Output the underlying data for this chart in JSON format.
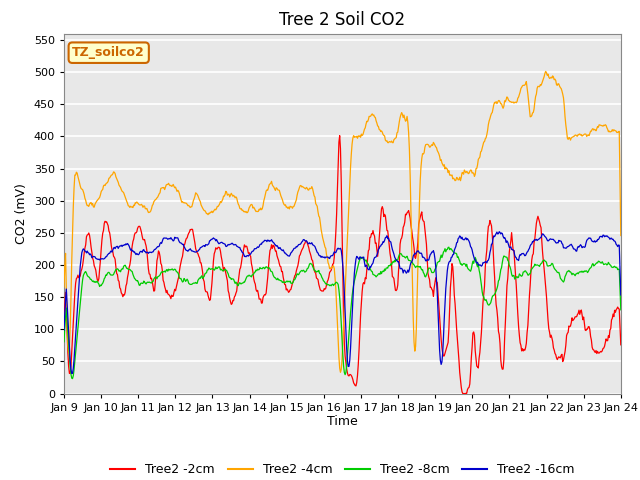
{
  "title": "Tree 2 Soil CO2",
  "xlabel": "Time",
  "ylabel": "CO2 (mV)",
  "ylim": [
    0,
    560
  ],
  "yticks": [
    0,
    50,
    100,
    150,
    200,
    250,
    300,
    350,
    400,
    450,
    500,
    550
  ],
  "x_tick_labels": [
    "Jan 9",
    "Jan 10",
    "Jan 11",
    "Jan 12",
    "Jan 13",
    "Jan 14",
    "Jan 15",
    "Jan 16",
    "Jan 17",
    "Jan 18",
    "Jan 19",
    "Jan 20",
    "Jan 21",
    "Jan 22",
    "Jan 23",
    "Jan 24"
  ],
  "colors": {
    "2cm": "#ff0000",
    "4cm": "#ffa500",
    "8cm": "#00cc00",
    "16cm": "#0000cc"
  },
  "legend_labels": [
    "Tree2 -2cm",
    "Tree2 -4cm",
    "Tree2 -8cm",
    "Tree2 -16cm"
  ],
  "annotation_text": "TZ_soilco2",
  "annotation_bg": "#ffffcc",
  "annotation_border": "#cc6600",
  "fig_bg": "#ffffff",
  "plot_bg": "#e8e8e8",
  "grid_color": "#ffffff",
  "title_fontsize": 12,
  "axis_label_fontsize": 9,
  "tick_fontsize": 8,
  "legend_fontsize": 9
}
